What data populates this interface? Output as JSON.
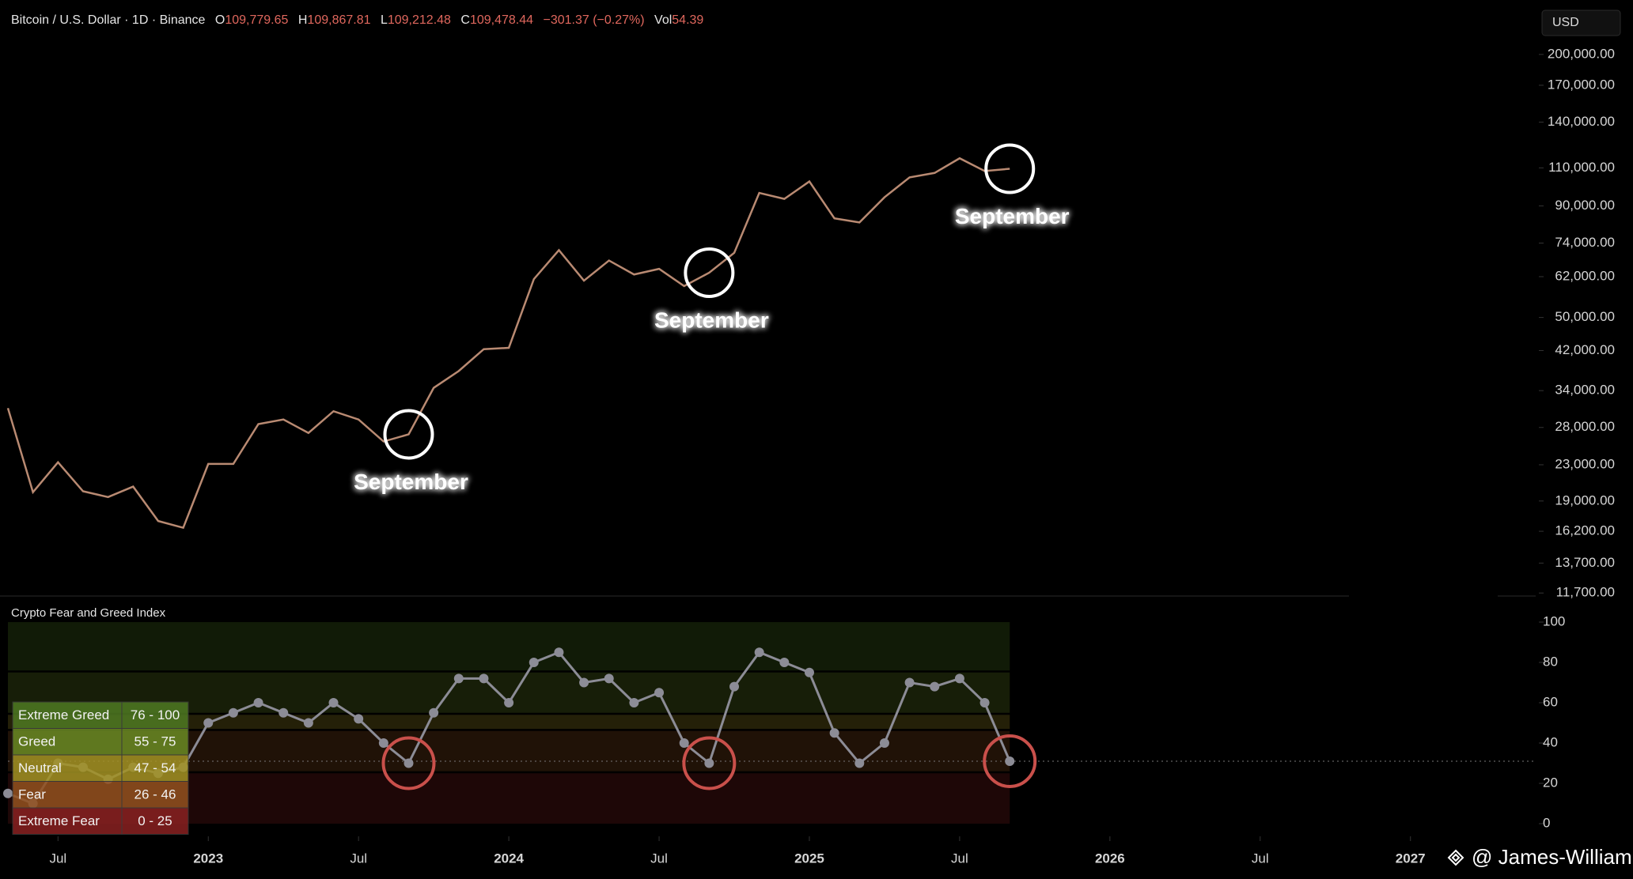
{
  "header": {
    "symbol": "Bitcoin / U.S. Dollar · 1D · Binance",
    "ohlc": [
      {
        "key": "O",
        "value": "109,779.65"
      },
      {
        "key": "H",
        "value": "109,867.81"
      },
      {
        "key": "L",
        "value": "109,212.48"
      },
      {
        "key": "C",
        "value": "109,478.44"
      }
    ],
    "change": "−301.37 (−0.27%)",
    "volume": {
      "key": "Vol",
      "value": "54.39"
    }
  },
  "currency": "USD",
  "watermark": "@ James-William",
  "chart_data": [
    {
      "type": "line",
      "log_scale": true,
      "color": "#b98a72",
      "x": [
        "2022-05",
        "2022-06",
        "2022-07",
        "2022-08",
        "2022-09",
        "2022-10",
        "2022-11",
        "2022-12",
        "2023-01",
        "2023-02",
        "2023-03",
        "2023-04",
        "2023-05",
        "2023-06",
        "2023-07",
        "2023-08",
        "2023-09",
        "2023-10",
        "2023-11",
        "2023-12",
        "2024-01",
        "2024-02",
        "2024-03",
        "2024-04",
        "2024-05",
        "2024-06",
        "2024-07",
        "2024-08",
        "2024-09",
        "2024-10",
        "2024-11",
        "2024-12",
        "2025-01",
        "2025-02",
        "2025-03",
        "2025-04",
        "2025-05",
        "2025-06",
        "2025-07",
        "2025-08",
        "2025-09"
      ],
      "values": [
        31000,
        19900,
        23300,
        20000,
        19400,
        20500,
        17100,
        16500,
        23100,
        23100,
        28500,
        29200,
        27200,
        30500,
        29200,
        26000,
        27000,
        34500,
        37700,
        42300,
        42600,
        61200,
        71300,
        60700,
        67500,
        62700,
        64600,
        59000,
        63300,
        70300,
        96400,
        93400,
        102400,
        84300,
        82500,
        94200,
        104600,
        107100,
        115700,
        108200,
        109478.44
      ],
      "xlim": [
        "2022-05",
        "2027-06"
      ],
      "ylim": [
        11000,
        220000
      ],
      "yticks": [
        {
          "value": 200000,
          "label": "200,000.00"
        },
        {
          "value": 170000,
          "label": "170,000.00"
        },
        {
          "value": 140000,
          "label": "140,000.00"
        },
        {
          "value": 110000,
          "label": "110,000.00"
        },
        {
          "value": 90000,
          "label": "90,000.00"
        },
        {
          "value": 74000,
          "label": "74,000.00"
        },
        {
          "value": 62000,
          "label": "62,000.00"
        },
        {
          "value": 50000,
          "label": "50,000.00"
        },
        {
          "value": 42000,
          "label": "42,000.00"
        },
        {
          "value": 34000,
          "label": "34,000.00"
        },
        {
          "value": 28000,
          "label": "28,000.00"
        },
        {
          "value": 23000,
          "label": "23,000.00"
        },
        {
          "value": 19000,
          "label": "19,000.00"
        },
        {
          "value": 16200,
          "label": "16,200.00"
        },
        {
          "value": 13700,
          "label": "13,700.00"
        },
        {
          "value": 11700,
          "label": "11,700.00"
        }
      ],
      "annotations": [
        {
          "label": "September",
          "x": "2023-09"
        },
        {
          "label": "September",
          "x": "2024-09"
        },
        {
          "label": "September",
          "x": "2025-09"
        }
      ]
    },
    {
      "type": "scatter",
      "title": "Crypto Fear and Greed Index",
      "color": "#8c8c96",
      "x": [
        "2022-05",
        "2022-06",
        "2022-07",
        "2022-08",
        "2022-09",
        "2022-10",
        "2022-11",
        "2022-12",
        "2023-01",
        "2023-02",
        "2023-03",
        "2023-04",
        "2023-05",
        "2023-06",
        "2023-07",
        "2023-08",
        "2023-09",
        "2023-10",
        "2023-11",
        "2023-12",
        "2024-01",
        "2024-02",
        "2024-03",
        "2024-04",
        "2024-05",
        "2024-06",
        "2024-07",
        "2024-08",
        "2024-09",
        "2024-10",
        "2024-11",
        "2024-12",
        "2025-01",
        "2025-02",
        "2025-03",
        "2025-04",
        "2025-05",
        "2025-06",
        "2025-07",
        "2025-08",
        "2025-09"
      ],
      "values": [
        15,
        10,
        30,
        28,
        22,
        28,
        25,
        28,
        50,
        55,
        60,
        55,
        50,
        60,
        52,
        40,
        30,
        55,
        72,
        72,
        60,
        80,
        85,
        70,
        72,
        60,
        65,
        40,
        30,
        68,
        85,
        80,
        75,
        45,
        30,
        40,
        70,
        68,
        72,
        60,
        31
      ],
      "xlim": [
        "2022-05",
        "2027-06"
      ],
      "ylim": [
        0,
        100
      ],
      "yticks": [
        0,
        20,
        40,
        60,
        80,
        100
      ],
      "xticks": [
        {
          "value": "2022-07",
          "label": "Jul"
        },
        {
          "value": "2023-01",
          "label": "2023"
        },
        {
          "value": "2023-07",
          "label": "Jul"
        },
        {
          "value": "2024-01",
          "label": "2024"
        },
        {
          "value": "2024-07",
          "label": "Jul"
        },
        {
          "value": "2025-01",
          "label": "2025"
        },
        {
          "value": "2025-07",
          "label": "Jul"
        },
        {
          "value": "2026-01",
          "label": "2026"
        },
        {
          "value": "2026-07",
          "label": "Jul"
        },
        {
          "value": "2027-01",
          "label": "2027"
        }
      ],
      "zones": [
        {
          "name": "Extreme Greed",
          "label": "76 - 100",
          "min": 76,
          "max": 100,
          "color": "#4f7a22"
        },
        {
          "name": "Greed",
          "label": "55 - 75",
          "min": 55,
          "max": 75,
          "color": "#6b8a24"
        },
        {
          "name": "Neutral",
          "label": "47 - 54",
          "min": 47,
          "max": 54,
          "color": "#a39324"
        },
        {
          "name": "Fear",
          "label": "26 - 46",
          "min": 26,
          "max": 46,
          "color": "#93511f"
        },
        {
          "name": "Extreme Fear",
          "label": "0 - 25",
          "min": 0,
          "max": 25,
          "color": "#8a2222"
        }
      ],
      "annotations": [
        {
          "x": "2023-09"
        },
        {
          "x": "2024-09"
        },
        {
          "x": "2025-09"
        }
      ]
    }
  ]
}
